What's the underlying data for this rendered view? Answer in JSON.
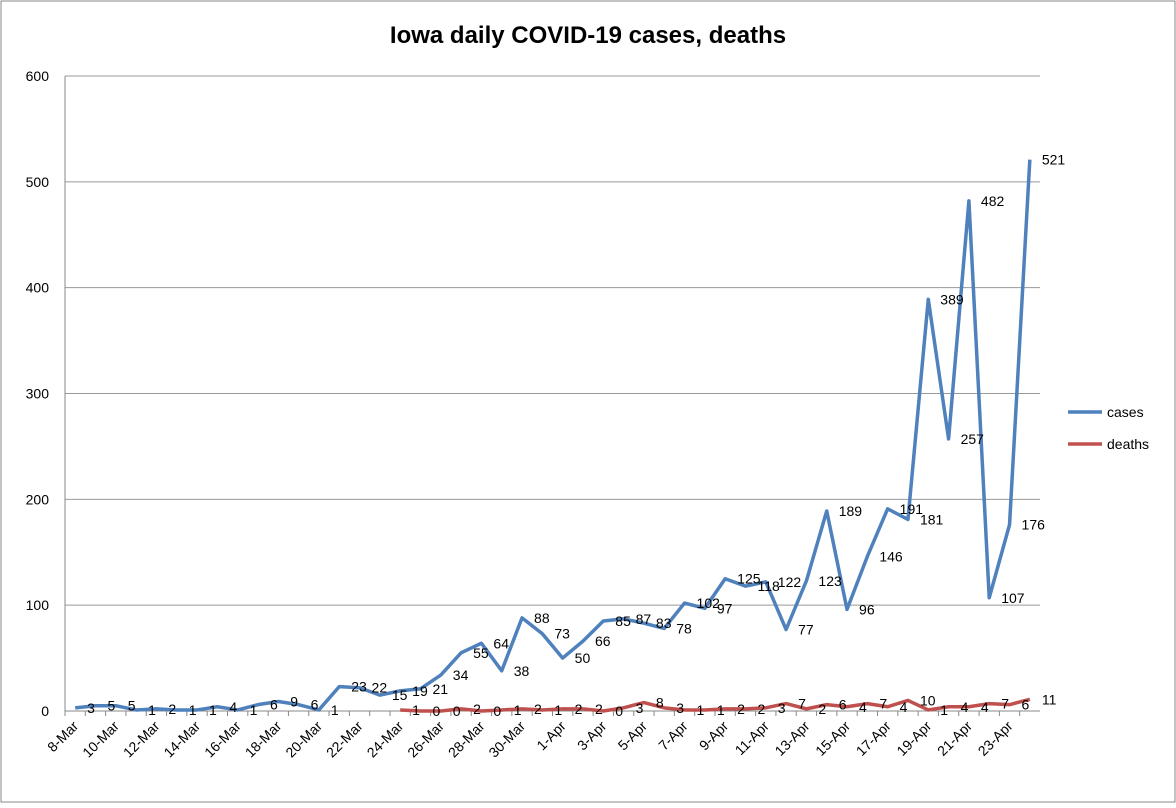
{
  "chart_data": {
    "type": "line",
    "title": "Iowa daily COVID-19 cases, deaths",
    "categories": [
      "8-Mar",
      null,
      "10-Mar",
      null,
      "12-Mar",
      null,
      "14-Mar",
      null,
      "16-Mar",
      null,
      "18-Mar",
      null,
      "20-Mar",
      null,
      "22-Mar",
      null,
      "24-Mar",
      null,
      "26-Mar",
      null,
      "28-Mar",
      null,
      "30-Mar",
      null,
      "1-Apr",
      null,
      "3-Apr",
      null,
      "5-Apr",
      null,
      "7-Apr",
      null,
      "9-Apr",
      null,
      "11-Apr",
      null,
      "13-Apr",
      null,
      "15-Apr",
      null,
      "17-Apr",
      null,
      "19-Apr",
      null,
      "21-Apr",
      null,
      "23-Apr",
      null
    ],
    "series": [
      {
        "name": "cases",
        "color": "#4f81bd",
        "values": [
          3,
          5,
          5,
          1,
          2,
          1,
          1,
          4,
          1,
          6,
          9,
          6,
          1,
          23,
          22,
          15,
          19,
          21,
          34,
          55,
          64,
          38,
          88,
          73,
          50,
          66,
          85,
          87,
          83,
          78,
          102,
          97,
          125,
          118,
          122,
          77,
          123,
          189,
          96,
          146,
          191,
          181,
          389,
          257,
          482,
          107,
          176,
          521
        ]
      },
      {
        "name": "deaths",
        "color": "#c0504d",
        "values": [
          null,
          null,
          null,
          null,
          null,
          null,
          null,
          null,
          null,
          null,
          null,
          null,
          null,
          null,
          null,
          null,
          1,
          0,
          0,
          2,
          0,
          1,
          2,
          1,
          2,
          2,
          0,
          3,
          8,
          3,
          1,
          1,
          2,
          2,
          3,
          7,
          2,
          6,
          4,
          7,
          4,
          10,
          1,
          4,
          4,
          7,
          6,
          11
        ]
      }
    ],
    "ylim": [
      0,
      600
    ],
    "yticks": [
      0,
      100,
      200,
      300,
      400,
      500,
      600
    ],
    "grid": true,
    "legend": "right"
  }
}
